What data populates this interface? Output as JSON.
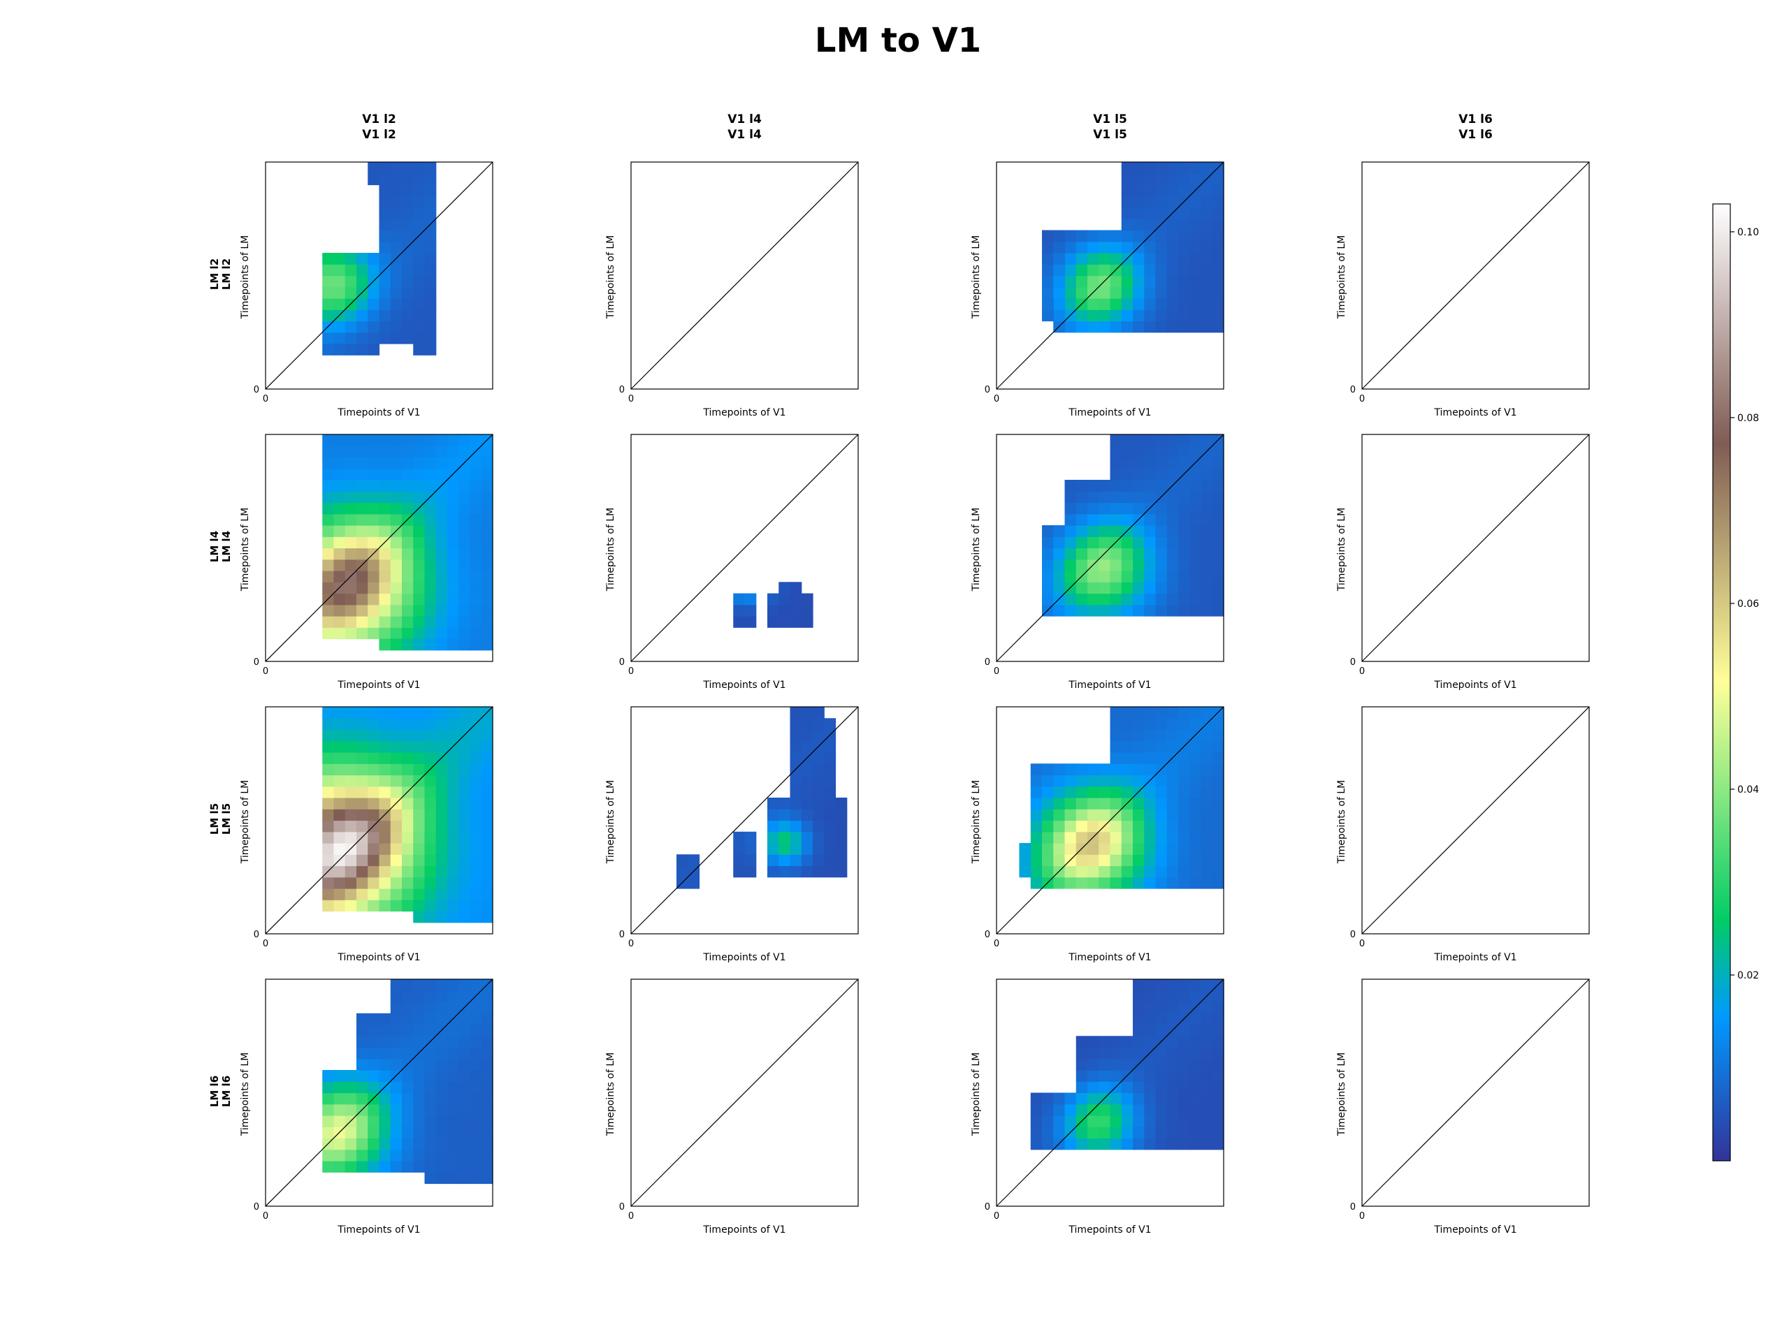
{
  "chart_data": {
    "type": "heatmap",
    "title": "LM to V1",
    "columns": [
      "V1 l2",
      "V1 l4",
      "V1 l5",
      "V1 l6"
    ],
    "rows": [
      "LM l2",
      "LM l4",
      "LM l5",
      "LM l6"
    ],
    "xlabel": "Timepoints of V1",
    "ylabel": "Timepoints of LM",
    "x_tick": "0",
    "y_tick": "0",
    "diagonal": true,
    "colormap": "terrain",
    "colorbar": {
      "min": 0.0,
      "max": 0.103,
      "ticks": [
        0.02,
        0.04,
        0.06,
        0.08,
        0.1
      ],
      "tick_labels": [
        "0.02",
        "0.04",
        "0.06",
        "0.08",
        "0.10"
      ]
    },
    "grid_size": 20,
    "panels": [
      {
        "row": "LM l2",
        "col": "V1 l2",
        "peak": 0.042,
        "peak_x": 0.28,
        "peak_y": 0.48,
        "spread": 0.22,
        "masked": false,
        "regions": [
          [
            5.5,
            14.5,
            4.3,
            12.4
          ],
          [
            10.5,
            14.5,
            12.4,
            17.7
          ],
          [
            9.5,
            14.5,
            17.7,
            20
          ],
          [
            5.5,
            9.5,
            3.5,
            12.4
          ],
          [
            13.5,
            14.5,
            3.5,
            4.3
          ]
        ]
      },
      {
        "row": "LM l2",
        "col": "V1 l4",
        "masked": true
      },
      {
        "row": "LM l2",
        "col": "V1 l5",
        "peak": 0.038,
        "peak_x": 0.46,
        "peak_y": 0.45,
        "spread": 0.22,
        "masked": false,
        "regions": [
          [
            6.5,
            20,
            5.5,
            13.5
          ],
          [
            11.5,
            20,
            13.5,
            20
          ],
          [
            4.5,
            11.5,
            8.5,
            13.5
          ],
          [
            5.5,
            11.5,
            5.5,
            8.5
          ],
          [
            4.5,
            5.5,
            6.5,
            8.5
          ]
        ]
      },
      {
        "row": "LM l2",
        "col": "V1 l6",
        "masked": true
      },
      {
        "row": "LM l4",
        "col": "V1 l2",
        "peak": 0.082,
        "peak_x": 0.37,
        "peak_y": 0.33,
        "spread": 0.38,
        "masked": false,
        "regions": [
          [
            5.5,
            20,
            1.8,
            20
          ],
          [
            10.5,
            20,
            1.3,
            1.8
          ]
        ]
      },
      {
        "row": "LM l4",
        "col": "V1 l4",
        "peak": 0.03,
        "peak_x": 0.52,
        "peak_y": 0.37,
        "spread": 0.12,
        "masked": false,
        "regions": [
          [
            9.5,
            10.5,
            3.5,
            5.5
          ],
          [
            12.5,
            14.5,
            3.5,
            5.5
          ],
          [
            13.5,
            15.5,
            3.5,
            5.5
          ],
          [
            13.5,
            14.5,
            5.5,
            6.5
          ]
        ]
      },
      {
        "row": "LM l4",
        "col": "V1 l5",
        "peak": 0.042,
        "peak_x": 0.48,
        "peak_y": 0.4,
        "spread": 0.26,
        "masked": false,
        "regions": [
          [
            4.0,
            20,
            4.5,
            12
          ],
          [
            6.5,
            20,
            12,
            16
          ],
          [
            10.5,
            20,
            16,
            20
          ]
        ]
      },
      {
        "row": "LM l4",
        "col": "V1 l6",
        "masked": true
      },
      {
        "row": "LM l5",
        "col": "V1 l2",
        "peak": 0.103,
        "peak_x": 0.32,
        "peak_y": 0.39,
        "spread": 0.42,
        "masked": false,
        "regions": [
          [
            5.5,
            20,
            2.5,
            20
          ],
          [
            13.5,
            20,
            1.5,
            2.5
          ]
        ]
      },
      {
        "row": "LM l5",
        "col": "V1 l4",
        "peak": 0.032,
        "peak_x": 0.68,
        "peak_y": 0.4,
        "spread": 0.12,
        "masked": false,
        "regions": [
          [
            4.5,
            5.5,
            4.5,
            6.5
          ],
          [
            9.5,
            10.5,
            5.5,
            8.5
          ],
          [
            12.5,
            18.5,
            5.5,
            11.5
          ],
          [
            14.5,
            17.5,
            11.5,
            18.5
          ],
          [
            14.5,
            16.5,
            18.5,
            20
          ]
        ]
      },
      {
        "row": "LM l5",
        "col": "V1 l5",
        "peak": 0.062,
        "peak_x": 0.42,
        "peak_y": 0.39,
        "spread": 0.3,
        "masked": false,
        "regions": [
          [
            3.5,
            20,
            4.5,
            14.5
          ],
          [
            10.5,
            20,
            14.5,
            20
          ],
          [
            2.5,
            3.5,
            5.5,
            7.5
          ]
        ]
      },
      {
        "row": "LM l5",
        "col": "V1 l6",
        "masked": true
      },
      {
        "row": "LM l6",
        "col": "V1 l2",
        "peak": 0.05,
        "peak_x": 0.32,
        "peak_y": 0.33,
        "spread": 0.28,
        "masked": false,
        "regions": [
          [
            5.5,
            20,
            3.5,
            11.5
          ],
          [
            8.5,
            20,
            11.5,
            16.5
          ],
          [
            11.5,
            20,
            16.5,
            20
          ],
          [
            14.5,
            20,
            2.5,
            3.5
          ]
        ]
      },
      {
        "row": "LM l6",
        "col": "V1 l4",
        "masked": true
      },
      {
        "row": "LM l6",
        "col": "V1 l5",
        "peak": 0.032,
        "peak_x": 0.46,
        "peak_y": 0.36,
        "spread": 0.2,
        "masked": false,
        "regions": [
          [
            3.5,
            20,
            5.5,
            9.5
          ],
          [
            7.5,
            20,
            9.5,
            14.5
          ],
          [
            12.5,
            20,
            14.5,
            20
          ]
        ]
      },
      {
        "row": "LM l6",
        "col": "V1 l6",
        "masked": true
      }
    ]
  }
}
